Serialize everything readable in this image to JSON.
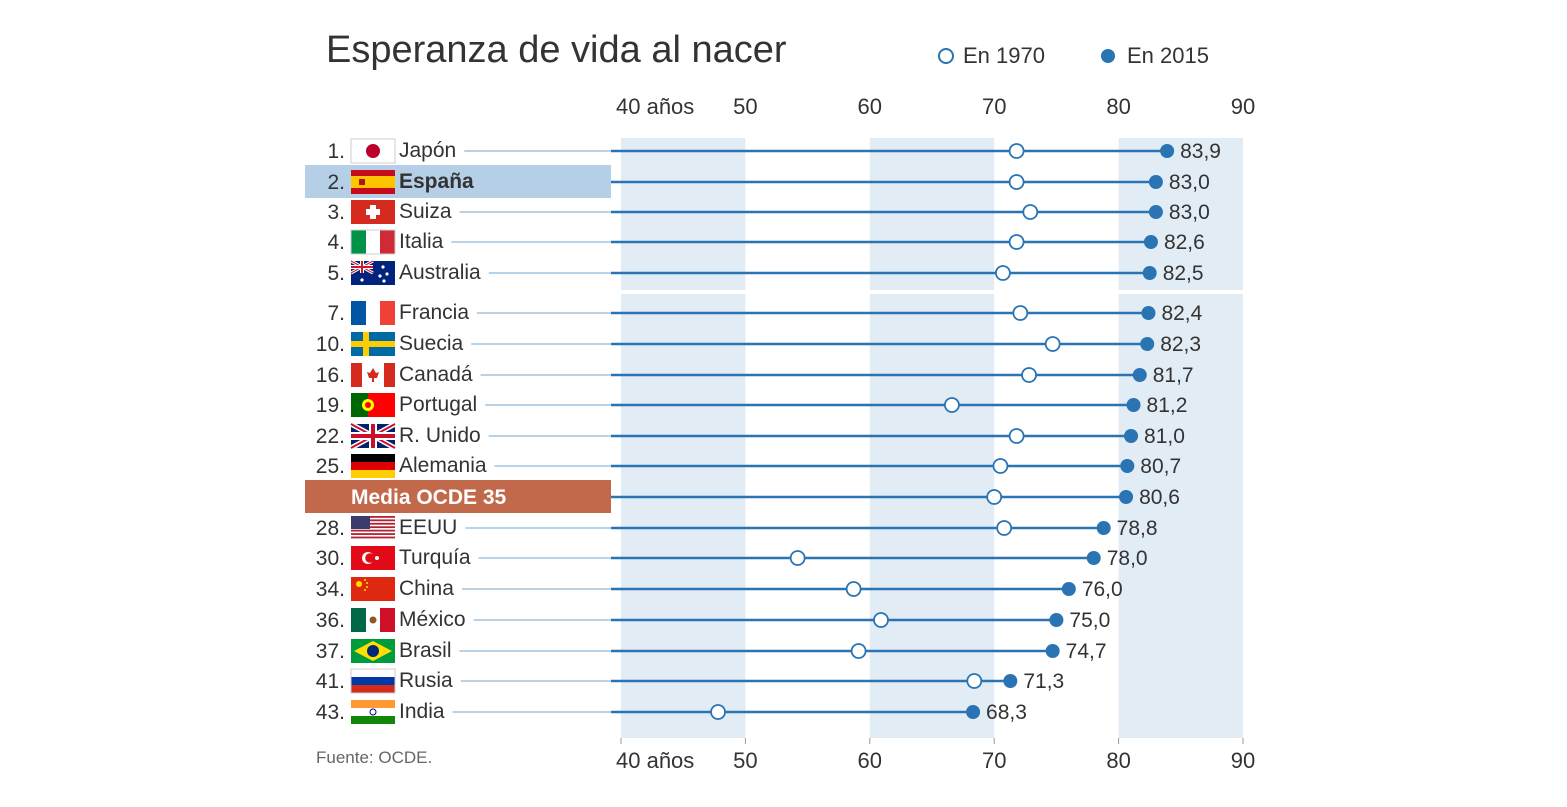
{
  "title": "Esperanza de vida al nacer",
  "legend": {
    "items": [
      {
        "label": "En 1970",
        "marker": "open-circle"
      },
      {
        "label": "En 2015",
        "marker": "filled-circle"
      }
    ]
  },
  "source": "Fuente: OCDE.",
  "colors": {
    "accent": "#2a74b3",
    "band": "#e2ecf5",
    "leader": "#b8d2e8",
    "highlight": "#b4cfe6",
    "oecd": "#c2694b",
    "text": "#333333"
  },
  "chart_data": {
    "type": "dumbbell",
    "title": "Esperanza de vida al nacer",
    "xlim": [
      40,
      90
    ],
    "x_ticks": [
      40,
      50,
      60,
      70,
      80,
      90
    ],
    "x_tick_labels": [
      "40 años",
      "50",
      "60",
      "70",
      "80",
      "90"
    ],
    "series_names": [
      "En 1970",
      "En 2015"
    ],
    "rows": [
      {
        "rank": "1.",
        "country": "Japón",
        "flag": "japan-flag",
        "v1970": 71.8,
        "v2015": 83.9,
        "label": "83,9"
      },
      {
        "rank": "2.",
        "country": "España",
        "flag": "spain-flag",
        "v1970": 71.8,
        "v2015": 83.0,
        "label": "83,0",
        "highlight": true
      },
      {
        "rank": "3.",
        "country": "Suiza",
        "flag": "switzerland-flag",
        "v1970": 72.9,
        "v2015": 83.0,
        "label": "83,0"
      },
      {
        "rank": "4.",
        "country": "Italia",
        "flag": "italy-flag",
        "v1970": 71.8,
        "v2015": 82.6,
        "label": "82,6"
      },
      {
        "rank": "5.",
        "country": "Australia",
        "flag": "australia-flag",
        "v1970": 70.7,
        "v2015": 82.5,
        "label": "82,5"
      },
      {
        "rank": "7.",
        "country": "Francia",
        "flag": "france-flag",
        "v1970": 72.1,
        "v2015": 82.4,
        "label": "82,4",
        "gap_before": true
      },
      {
        "rank": "10.",
        "country": "Suecia",
        "flag": "sweden-flag",
        "v1970": 74.7,
        "v2015": 82.3,
        "label": "82,3"
      },
      {
        "rank": "16.",
        "country": "Canadá",
        "flag": "canada-flag",
        "v1970": 72.8,
        "v2015": 81.7,
        "label": "81,7"
      },
      {
        "rank": "19.",
        "country": "Portugal",
        "flag": "portugal-flag",
        "v1970": 66.6,
        "v2015": 81.2,
        "label": "81,2"
      },
      {
        "rank": "22.",
        "country": "R. Unido",
        "flag": "uk-flag",
        "v1970": 71.8,
        "v2015": 81.0,
        "label": "81,0"
      },
      {
        "rank": "25.",
        "country": "Alemania",
        "flag": "germany-flag",
        "v1970": 70.5,
        "v2015": 80.7,
        "label": "80,7"
      },
      {
        "rank": "",
        "country": "Media OCDE 35",
        "flag": "",
        "v1970": 70.0,
        "v2015": 80.6,
        "label": "80,6",
        "oecd": true
      },
      {
        "rank": "28.",
        "country": "EEUU",
        "flag": "usa-flag",
        "v1970": 70.8,
        "v2015": 78.8,
        "label": "78,8"
      },
      {
        "rank": "30.",
        "country": "Turquía",
        "flag": "turkey-flag",
        "v1970": 54.2,
        "v2015": 78.0,
        "label": "78,0"
      },
      {
        "rank": "34.",
        "country": "China",
        "flag": "china-flag",
        "v1970": 58.7,
        "v2015": 76.0,
        "label": "76,0"
      },
      {
        "rank": "36.",
        "country": "México",
        "flag": "mexico-flag",
        "v1970": 60.9,
        "v2015": 75.0,
        "label": "75,0"
      },
      {
        "rank": "37.",
        "country": "Brasil",
        "flag": "brazil-flag",
        "v1970": 59.1,
        "v2015": 74.7,
        "label": "74,7"
      },
      {
        "rank": "41.",
        "country": "Rusia",
        "flag": "russia-flag",
        "v1970": 68.4,
        "v2015": 71.3,
        "label": "71,3"
      },
      {
        "rank": "43.",
        "country": "India",
        "flag": "india-flag",
        "v1970": 47.8,
        "v2015": 68.3,
        "label": "68,3"
      }
    ]
  }
}
